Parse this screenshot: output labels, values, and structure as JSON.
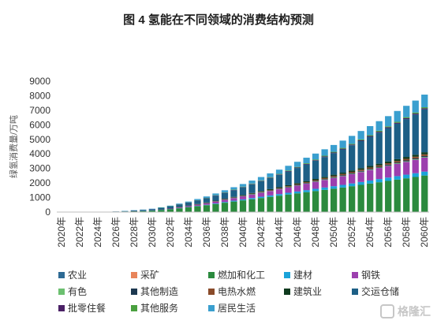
{
  "chart_data": {
    "type": "bar",
    "stacked": true,
    "title": "图 4 氢能在不同领域的消费结构预测",
    "ylabel": "绿氢消费量/万吨",
    "xlabel": "",
    "ylim": [
      0,
      9000
    ],
    "yticks": [
      0,
      1000,
      2000,
      3000,
      4000,
      5000,
      6000,
      7000,
      8000,
      9000
    ],
    "grid": false,
    "legend_position": "bottom",
    "categories": [
      "2020年",
      "2021年",
      "2022年",
      "2023年",
      "2024年",
      "2025年",
      "2026年",
      "2027年",
      "2028年",
      "2029年",
      "2030年",
      "2031年",
      "2032年",
      "2033年",
      "2034年",
      "2035年",
      "2036年",
      "2037年",
      "2038年",
      "2039年",
      "2040年",
      "2041年",
      "2042年",
      "2043年",
      "2044年",
      "2045年",
      "2046年",
      "2047年",
      "2048年",
      "2049年",
      "2050年",
      "2051年",
      "2052年",
      "2053年",
      "2054年",
      "2055年",
      "2056年",
      "2057年",
      "2058年",
      "2059年",
      "2060年"
    ],
    "xtick_labels": [
      "2020年",
      "2022年",
      "2024年",
      "2026年",
      "2028年",
      "2030年",
      "2032年",
      "2034年",
      "2036年",
      "2038年",
      "2040年",
      "2042年",
      "2044年",
      "2046年",
      "2048年",
      "2050年",
      "2052年",
      "2054年",
      "2056年",
      "2058年",
      "2060年"
    ],
    "series": [
      {
        "name": "农业",
        "color": "#2e6a94",
        "values": [
          0,
          0,
          0,
          0,
          0,
          0,
          0,
          0,
          0,
          0,
          0,
          1,
          1,
          1,
          2,
          2,
          2,
          2,
          3,
          3,
          3,
          4,
          4,
          4,
          5,
          5,
          5,
          6,
          6,
          6,
          7,
          7,
          7,
          8,
          8,
          8,
          9,
          9,
          9,
          10,
          10
        ]
      },
      {
        "name": "采矿",
        "color": "#e8845a",
        "values": [
          0,
          0,
          0,
          0,
          0,
          0,
          0,
          0,
          0,
          0,
          0,
          0,
          1,
          1,
          1,
          1,
          1,
          1,
          1,
          1,
          1,
          1,
          1,
          2,
          2,
          2,
          2,
          2,
          2,
          2,
          2,
          2,
          2,
          2,
          3,
          3,
          3,
          3,
          3,
          3,
          3
        ]
      },
      {
        "name": "燃加和化工",
        "color": "#2b8a3e",
        "values": [
          0,
          0,
          0,
          0,
          0,
          10,
          20,
          40,
          60,
          80,
          110,
          150,
          200,
          260,
          330,
          400,
          470,
          550,
          640,
          720,
          800,
          880,
          960,
          1040,
          1120,
          1200,
          1280,
          1360,
          1440,
          1520,
          1600,
          1680,
          1770,
          1860,
          1950,
          2040,
          2130,
          2220,
          2310,
          2400,
          2500
        ]
      },
      {
        "name": "建材",
        "color": "#1aa3d9",
        "values": [
          0,
          0,
          0,
          0,
          0,
          0,
          0,
          0,
          0,
          5,
          5,
          10,
          10,
          15,
          20,
          25,
          30,
          40,
          50,
          60,
          70,
          80,
          90,
          100,
          110,
          120,
          130,
          140,
          150,
          160,
          170,
          180,
          190,
          200,
          210,
          220,
          230,
          240,
          250,
          260,
          270
        ]
      },
      {
        "name": "钢铁",
        "color": "#9c3fae",
        "values": [
          0,
          0,
          0,
          0,
          0,
          0,
          0,
          0,
          5,
          10,
          15,
          25,
          40,
          55,
          70,
          90,
          110,
          135,
          160,
          185,
          210,
          240,
          270,
          300,
          330,
          360,
          400,
          440,
          480,
          520,
          560,
          600,
          640,
          680,
          720,
          760,
          800,
          840,
          880,
          920,
          960
        ]
      },
      {
        "name": "有色",
        "color": "#6cc070",
        "values": [
          0,
          0,
          0,
          0,
          0,
          0,
          0,
          0,
          0,
          0,
          0,
          0,
          0,
          5,
          5,
          5,
          5,
          10,
          10,
          10,
          10,
          15,
          15,
          15,
          15,
          20,
          20,
          20,
          20,
          25,
          25,
          25,
          25,
          30,
          30,
          30,
          30,
          35,
          35,
          35,
          40
        ]
      },
      {
        "name": "其他制造",
        "color": "#1c3850",
        "values": [
          0,
          0,
          0,
          0,
          0,
          0,
          0,
          0,
          0,
          0,
          0,
          0,
          5,
          5,
          5,
          10,
          10,
          10,
          15,
          15,
          20,
          20,
          25,
          25,
          30,
          30,
          35,
          35,
          40,
          40,
          45,
          45,
          50,
          50,
          55,
          55,
          60,
          60,
          65,
          65,
          70
        ]
      },
      {
        "name": "电热水燃",
        "color": "#8a4b2a",
        "values": [
          0,
          0,
          0,
          0,
          0,
          0,
          0,
          0,
          0,
          0,
          0,
          0,
          0,
          5,
          5,
          5,
          10,
          10,
          15,
          15,
          20,
          25,
          30,
          35,
          40,
          45,
          50,
          55,
          60,
          65,
          70,
          75,
          80,
          85,
          90,
          95,
          100,
          105,
          110,
          115,
          120
        ]
      },
      {
        "name": "建筑业",
        "color": "#0f3a1e",
        "values": [
          0,
          0,
          0,
          0,
          0,
          0,
          0,
          0,
          0,
          0,
          0,
          5,
          5,
          10,
          10,
          15,
          20,
          25,
          30,
          35,
          40,
          45,
          50,
          55,
          60,
          65,
          70,
          75,
          80,
          85,
          90,
          95,
          100,
          105,
          110,
          115,
          120,
          125,
          130,
          135,
          140
        ]
      },
      {
        "name": "交运仓储",
        "color": "#1d5f86",
        "values": [
          0,
          0,
          0,
          0,
          0,
          10,
          20,
          30,
          50,
          60,
          80,
          100,
          130,
          160,
          200,
          240,
          290,
          340,
          400,
          460,
          530,
          600,
          680,
          760,
          850,
          940,
          1040,
          1140,
          1250,
          1360,
          1480,
          1600,
          1730,
          1860,
          2000,
          2140,
          2290,
          2440,
          2600,
          2760,
          2950
        ]
      },
      {
        "name": "批零住餐",
        "color": "#4b2166",
        "values": [
          0,
          0,
          0,
          0,
          0,
          0,
          0,
          0,
          0,
          0,
          0,
          0,
          5,
          5,
          5,
          10,
          10,
          15,
          15,
          20,
          20,
          25,
          25,
          30,
          30,
          35,
          35,
          40,
          40,
          45,
          45,
          50,
          50,
          55,
          55,
          60,
          60,
          65,
          65,
          70,
          70
        ]
      },
      {
        "name": "其他服务",
        "color": "#4aa03f",
        "values": [
          0,
          0,
          0,
          0,
          0,
          0,
          0,
          0,
          0,
          0,
          0,
          5,
          5,
          10,
          10,
          15,
          15,
          20,
          20,
          25,
          25,
          30,
          30,
          35,
          35,
          40,
          40,
          45,
          45,
          50,
          50,
          55,
          55,
          60,
          60,
          65,
          65,
          70,
          70,
          75,
          75
        ]
      },
      {
        "name": "居民生活",
        "color": "#3a9fcf",
        "values": [
          0,
          0,
          0,
          0,
          0,
          0,
          0,
          5,
          10,
          15,
          20,
          30,
          40,
          50,
          60,
          80,
          100,
          120,
          140,
          160,
          180,
          200,
          230,
          260,
          290,
          320,
          350,
          380,
          410,
          440,
          470,
          500,
          540,
          580,
          620,
          660,
          700,
          740,
          780,
          820,
          870
        ]
      }
    ]
  },
  "watermark": {
    "text": "格隆汇"
  }
}
